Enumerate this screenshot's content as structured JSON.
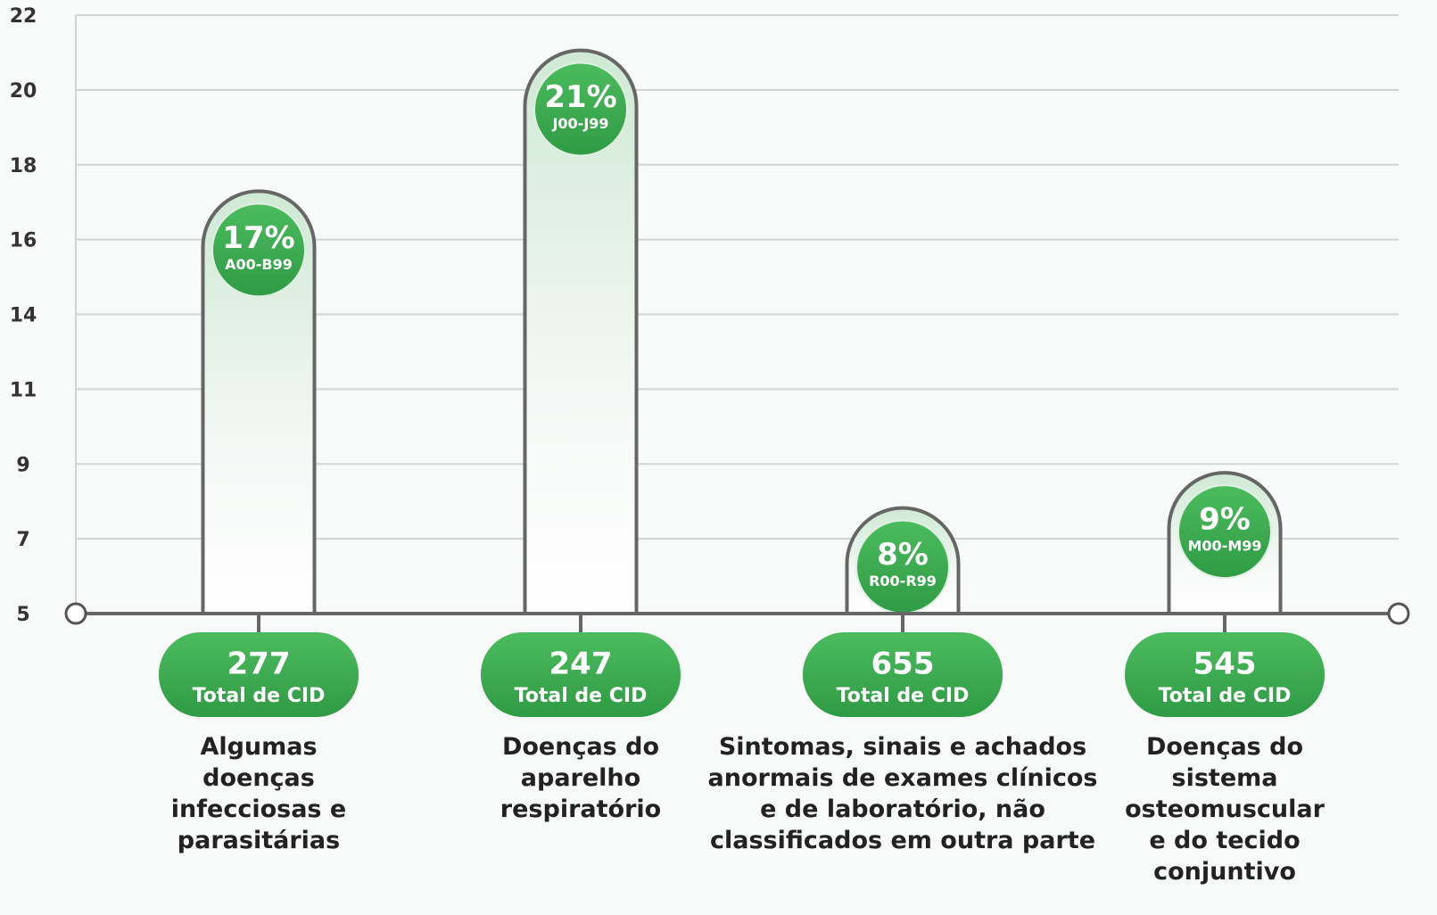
{
  "chart_data": {
    "type": "bar",
    "categories": [
      "Algumas doenças infecciosas e parasitárias",
      "Doenças do aparelho respiratório",
      "Sintomas, sinais e achados anormais de exames clínicos e de laboratório, não classificados em outra parte",
      "Doenças do sistema osteomuscular e do tecido conjuntivo"
    ],
    "values": [
      17,
      21,
      8,
      9
    ],
    "value_labels": [
      "17%",
      "21%",
      "8%",
      "9%"
    ],
    "codes": [
      "A00-B99",
      "J00-J99",
      "R00-R99",
      "M00-M99"
    ],
    "totals": [
      277,
      247,
      655,
      545
    ],
    "total_label": "Total de CID",
    "color": "#3aa64f",
    "ylim": [
      5,
      22
    ],
    "yticks": [
      5,
      {
        "value": 7.125,
        "label": "7"
      },
      {
        "value": 9.25,
        "label": "9"
      },
      {
        "value": 11.375,
        "label": "11"
      },
      {
        "value": 13.5,
        "label": "14"
      },
      {
        "value": 15.625,
        "label": "16"
      },
      {
        "value": 17.75,
        "label": "18"
      },
      {
        "value": 19.875,
        "label": "20"
      },
      22
    ],
    "grid": true
  }
}
